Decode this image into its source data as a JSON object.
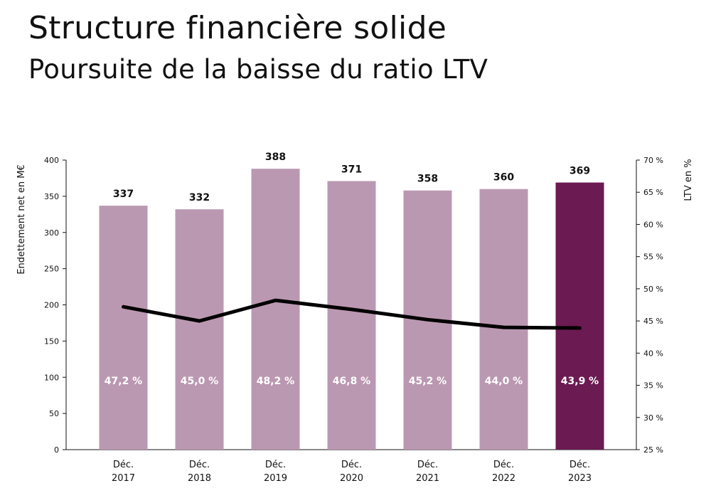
{
  "header": {
    "title": "Structure financière solide",
    "subtitle": "Poursuite de la baisse du ratio LTV"
  },
  "colors": {
    "bar": "#bb98b1",
    "bar_highlight": "#6b1a52",
    "line": "#000000",
    "axis": "#111111"
  },
  "chart_data": {
    "type": "bar",
    "categories": [
      [
        "Déc.",
        "2017"
      ],
      [
        "Déc.",
        "2018"
      ],
      [
        "Déc.",
        "2019"
      ],
      [
        "Déc.",
        "2020"
      ],
      [
        "Déc.",
        "2021"
      ],
      [
        "Déc.",
        "2022"
      ],
      [
        "Déc.",
        "2023"
      ]
    ],
    "highlight_index": 6,
    "series": [
      {
        "type": "bar",
        "axis": "left",
        "values": [
          337,
          332,
          388,
          371,
          358,
          360,
          369
        ],
        "value_labels": [
          "337",
          "332",
          "388",
          "371",
          "358",
          "360",
          "369"
        ]
      },
      {
        "type": "line",
        "axis": "right",
        "values": [
          47.2,
          45.0,
          48.2,
          46.8,
          45.2,
          44.0,
          43.9
        ],
        "value_labels": [
          "47,2 %",
          "45,0 %",
          "48,2 %",
          "46,8 %",
          "45,2 %",
          "44,0 %",
          "43,9 %"
        ]
      }
    ],
    "ylabel": "Endettement net en M€",
    "y2label": "LTV en %",
    "ylim": [
      0,
      400
    ],
    "y_ticks": [
      "0",
      "50",
      "100",
      "150",
      "200",
      "250",
      "300",
      "350",
      "400"
    ],
    "y2lim": [
      25,
      70
    ],
    "y2_ticks": [
      "25 %",
      "30 %",
      "35 %",
      "40 %",
      "45 %",
      "50 %",
      "55 %",
      "60 %",
      "65 %",
      "70 %"
    ],
    "grid": false,
    "legend": "none"
  }
}
